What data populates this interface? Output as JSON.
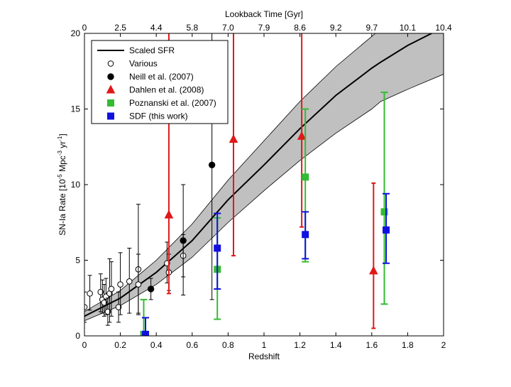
{
  "chart_data": {
    "type": "scatter",
    "xlabel": "Redshift",
    "ylabel_main": "SN-Ia Rate [10",
    "ylabel_exp1": "-5",
    "ylabel_mid": " Mpc",
    "ylabel_exp2": "-3",
    "ylabel_mid2": " yr",
    "ylabel_exp3": "-1",
    "ylabel_end": "]",
    "top_xlabel": "Lookback Time [Gyr]",
    "xlim": [
      0,
      2
    ],
    "ylim": [
      0,
      20
    ],
    "x_ticks": [
      "0",
      "0.2",
      "0.4",
      "0.6",
      "0.8",
      "1",
      "1.2",
      "1.4",
      "1.6",
      "1.8",
      "2"
    ],
    "x_tick_values": [
      0,
      0.2,
      0.4,
      0.6,
      0.8,
      1.0,
      1.2,
      1.4,
      1.6,
      1.8,
      2.0
    ],
    "y_ticks": [
      "0",
      "5",
      "10",
      "15",
      "20"
    ],
    "y_tick_values": [
      0,
      5,
      10,
      15,
      20
    ],
    "top_ticks": [
      "0",
      "2.5",
      "4.4",
      "5.8",
      "7.0",
      "7.9",
      "8.6",
      "9.2",
      "9.7",
      "10.1",
      "10.4"
    ],
    "legend_position": "top-left",
    "series": [
      {
        "name": "Scaled SFR",
        "kind": "line",
        "color": "#000000",
        "x": [
          0,
          0.2,
          0.4,
          0.6,
          0.8,
          1.0,
          1.2,
          1.4,
          1.6,
          1.65,
          1.8,
          1.9,
          2.0
        ],
        "y": [
          1.3,
          2.5,
          4.2,
          6.3,
          9.0,
          11.3,
          13.7,
          15.9,
          17.7,
          18.1,
          19.2,
          19.8,
          20.4
        ],
        "band_upper": [
          1.6,
          3.0,
          5.0,
          7.4,
          10.3,
          12.9,
          15.5,
          17.8,
          19.8,
          20.3,
          21.3,
          22.0,
          22.5
        ],
        "band_lower": [
          1.0,
          2.0,
          3.4,
          5.2,
          7.5,
          9.6,
          11.6,
          13.4,
          15.0,
          15.5,
          16.3,
          16.8,
          17.3
        ]
      },
      {
        "name": "Various",
        "kind": "points",
        "marker": "open-circle",
        "color": "#000000",
        "points": [
          {
            "x": 0.0,
            "y": 1.9,
            "lo": 0.9,
            "hi": 2.9
          },
          {
            "x": 0.03,
            "y": 2.8,
            "lo": 1.7,
            "hi": 4.0
          },
          {
            "x": 0.09,
            "y": 2.9,
            "lo": 1.6,
            "hi": 4.1
          },
          {
            "x": 0.1,
            "y": 2.4,
            "lo": 1.5,
            "hi": 3.7
          },
          {
            "x": 0.11,
            "y": 2.2,
            "lo": 1.3,
            "hi": 3.4
          },
          {
            "x": 0.12,
            "y": 2.6,
            "lo": 1.4,
            "hi": 3.8
          },
          {
            "x": 0.13,
            "y": 1.6,
            "lo": 0.7,
            "hi": 2.5
          },
          {
            "x": 0.14,
            "y": 2.8,
            "lo": 0.9,
            "hi": 5.1
          },
          {
            "x": 0.15,
            "y": 3.1,
            "lo": 1.3,
            "hi": 4.9
          },
          {
            "x": 0.19,
            "y": 1.9,
            "lo": 0.9,
            "hi": 2.9
          },
          {
            "x": 0.2,
            "y": 3.4,
            "lo": 1.4,
            "hi": 5.5
          },
          {
            "x": 0.25,
            "y": 3.6,
            "lo": 1.5,
            "hi": 5.8
          },
          {
            "x": 0.3,
            "y": 4.4,
            "lo": 1.4,
            "hi": 8.7
          },
          {
            "x": 0.3,
            "y": 3.4,
            "lo": 1.5,
            "hi": 5.4
          },
          {
            "x": 0.46,
            "y": 4.8,
            "lo": 3.5,
            "hi": 6.2
          },
          {
            "x": 0.47,
            "y": 4.2,
            "lo": 3.0,
            "hi": 5.4
          },
          {
            "x": 0.55,
            "y": 5.3,
            "lo": 3.9,
            "hi": 6.7
          }
        ]
      },
      {
        "name": "Neill et al. (2007)",
        "kind": "points",
        "marker": "filled-circle",
        "color": "#000000",
        "points": [
          {
            "x": 0.37,
            "y": 3.1,
            "lo": 2.4,
            "hi": 3.8
          },
          {
            "x": 0.55,
            "y": 6.3,
            "lo": 2.7,
            "hi": 10.0
          },
          {
            "x": 0.71,
            "y": 11.3,
            "lo": 2.4,
            "hi": 20.5
          }
        ]
      },
      {
        "name": "Dahlen et al. (2008)",
        "kind": "points",
        "marker": "triangle",
        "color": "#e01818",
        "points": [
          {
            "x": 0.47,
            "y": 8.0,
            "lo": 2.8,
            "hi": 20.5
          },
          {
            "x": 0.83,
            "y": 13.0,
            "lo": 5.3,
            "hi": 20.5
          },
          {
            "x": 1.21,
            "y": 13.2,
            "lo": 7.2,
            "hi": 20.5
          },
          {
            "x": 1.61,
            "y": 4.3,
            "lo": 0.5,
            "hi": 10.1
          }
        ]
      },
      {
        "name": "Poznanski et al. (2007)",
        "kind": "points",
        "marker": "square",
        "color": "#33bb33",
        "points": [
          {
            "x": 0.33,
            "y": 0.1,
            "lo": 0.0,
            "hi": 2.4
          },
          {
            "x": 0.74,
            "y": 4.4,
            "lo": 1.1,
            "hi": 7.8
          },
          {
            "x": 1.23,
            "y": 10.5,
            "lo": 4.9,
            "hi": 15.0
          },
          {
            "x": 1.67,
            "y": 8.2,
            "lo": 2.1,
            "hi": 16.1
          }
        ]
      },
      {
        "name": "SDF (this work)",
        "kind": "points",
        "marker": "square",
        "color": "#1010e0",
        "points": [
          {
            "x": 0.34,
            "y": 0.1,
            "lo": 0.0,
            "hi": 1.2
          },
          {
            "x": 0.74,
            "y": 5.8,
            "lo": 3.1,
            "hi": 8.1
          },
          {
            "x": 1.23,
            "y": 6.7,
            "lo": 5.1,
            "hi": 8.2
          },
          {
            "x": 1.68,
            "y": 7.0,
            "lo": 4.8,
            "hi": 9.4
          }
        ]
      }
    ]
  }
}
